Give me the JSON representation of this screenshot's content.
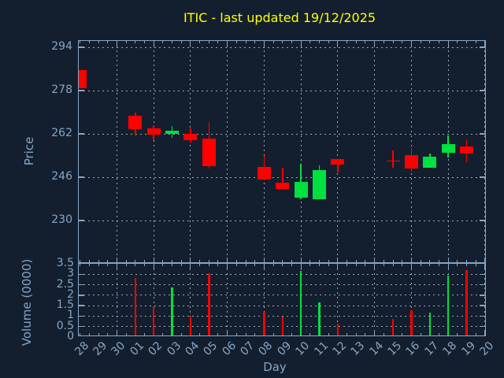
{
  "title": "ITIC - last updated 19/12/2025",
  "colors": {
    "background": "#131f2e",
    "axis": "#88a6c4",
    "grid": "#9fa9b2",
    "text": "#86a6c9",
    "title": "#ffff00",
    "up": "#00e040",
    "down": "#ff0000"
  },
  "chart_data": [
    {
      "type": "candlestick",
      "panel": "price",
      "ylabel": "Price",
      "ylim": [
        214.0,
        296.4
      ],
      "yticks": [
        230,
        246,
        262,
        278,
        294
      ],
      "grid": "dotted",
      "categories": [
        "28",
        "29",
        "30",
        "01",
        "02",
        "03",
        "04",
        "05",
        "06",
        "07",
        "08",
        "09",
        "10",
        "11",
        "12",
        "13",
        "14",
        "15",
        "16",
        "17",
        "18",
        "19",
        "20"
      ],
      "gridline_days": [
        "30",
        "02",
        "04",
        "06",
        "08",
        "10",
        "12",
        "14",
        "16",
        "18",
        "20"
      ],
      "candles": [
        {
          "day": "28",
          "open": 285.5,
          "high": 285.5,
          "low": 278.8,
          "close": 278.8,
          "direction": "down"
        },
        {
          "day": "01",
          "open": 268.7,
          "high": 270.0,
          "low": 261.4,
          "close": 263.9,
          "direction": "down"
        },
        {
          "day": "02",
          "open": 264.1,
          "high": 265.3,
          "low": 259.6,
          "close": 261.8,
          "direction": "down"
        },
        {
          "day": "03",
          "open": 261.9,
          "high": 264.9,
          "low": 260.7,
          "close": 263.1,
          "direction": "up"
        },
        {
          "day": "04",
          "open": 261.9,
          "high": 264.0,
          "low": 258.8,
          "close": 259.6,
          "direction": "down"
        },
        {
          "day": "05",
          "open": 260.2,
          "high": 266.3,
          "low": 249.1,
          "close": 250.1,
          "direction": "down"
        },
        {
          "day": "08",
          "open": 249.8,
          "high": 253.9,
          "low": 245.0,
          "close": 245.2,
          "direction": "down"
        },
        {
          "day": "09",
          "open": 244.0,
          "high": 249.5,
          "low": 241.8,
          "close": 241.8,
          "direction": "down"
        },
        {
          "day": "10",
          "open": 238.5,
          "high": 250.9,
          "low": 237.9,
          "close": 244.4,
          "direction": "up"
        },
        {
          "day": "11",
          "open": 237.9,
          "high": 250.4,
          "low": 237.9,
          "close": 248.6,
          "direction": "up"
        },
        {
          "day": "12",
          "open": 252.6,
          "high": 252.6,
          "low": 247.9,
          "close": 250.6,
          "direction": "down"
        },
        {
          "day": "15",
          "open": 252.2,
          "high": 255.8,
          "low": 249.6,
          "close": 251.8,
          "direction": "down"
        },
        {
          "day": "16",
          "open": 254.1,
          "high": 256.8,
          "low": 248.2,
          "close": 249.3,
          "direction": "down"
        },
        {
          "day": "17",
          "open": 249.6,
          "high": 254.8,
          "low": 249.6,
          "close": 253.5,
          "direction": "up"
        },
        {
          "day": "18",
          "open": 255.1,
          "high": 261.6,
          "low": 253.2,
          "close": 258.3,
          "direction": "up"
        },
        {
          "day": "19",
          "open": 257.3,
          "high": 259.6,
          "low": 251.7,
          "close": 254.8,
          "direction": "down"
        }
      ]
    },
    {
      "type": "bar",
      "panel": "volume",
      "ylabel": "Volume (0000)",
      "xlabel": "Day",
      "ylim": [
        0,
        3.5
      ],
      "yticks": [
        0,
        0.5,
        1,
        1.5,
        2,
        2.5,
        3,
        3.5
      ],
      "grid": "dotted",
      "bars": [
        {
          "day": "01",
          "value": 2.83,
          "direction": "down"
        },
        {
          "day": "02",
          "value": 1.43,
          "direction": "down"
        },
        {
          "day": "03",
          "value": 2.36,
          "direction": "up"
        },
        {
          "day": "04",
          "value": 0.96,
          "direction": "down"
        },
        {
          "day": "05",
          "value": 3.05,
          "direction": "down"
        },
        {
          "day": "08",
          "value": 1.21,
          "direction": "down"
        },
        {
          "day": "09",
          "value": 0.99,
          "direction": "down"
        },
        {
          "day": "10",
          "value": 3.17,
          "direction": "up"
        },
        {
          "day": "11",
          "value": 1.67,
          "direction": "up"
        },
        {
          "day": "12",
          "value": 0.65,
          "direction": "down"
        },
        {
          "day": "15",
          "value": 0.87,
          "direction": "down"
        },
        {
          "day": "16",
          "value": 1.27,
          "direction": "down"
        },
        {
          "day": "17",
          "value": 1.15,
          "direction": "up"
        },
        {
          "day": "18",
          "value": 2.92,
          "direction": "up"
        },
        {
          "day": "19",
          "value": 3.21,
          "direction": "down"
        }
      ]
    }
  ]
}
